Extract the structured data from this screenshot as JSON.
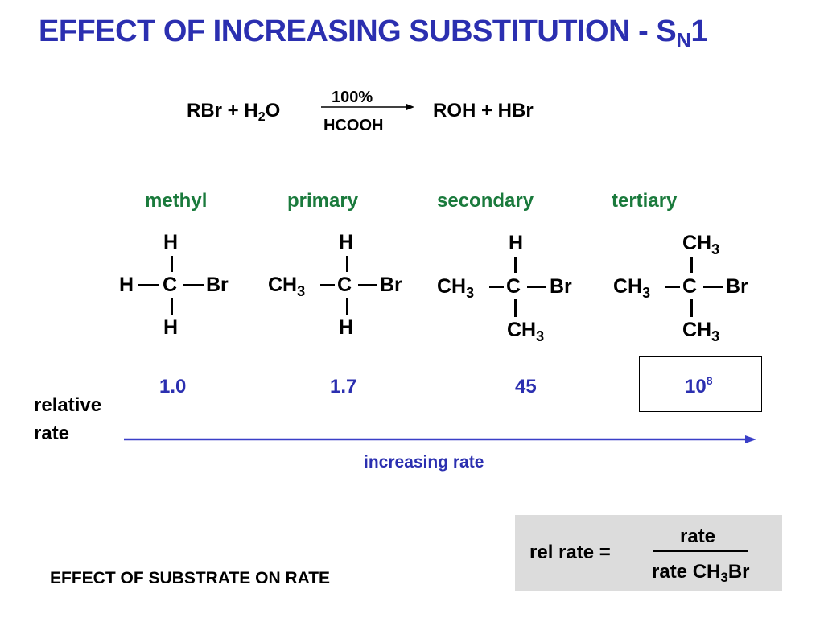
{
  "title": {
    "main": "EFFECT OF INCREASING SUBSTITUTION  -  S",
    "sub": "N",
    "tail": "1"
  },
  "reaction": {
    "rbr": "RBr  +  H",
    "water_sub": "2",
    "water_o": "O",
    "above_arrow": "100%",
    "below_arrow": "HCOOH",
    "products": "ROH    +    HBr"
  },
  "categories": [
    "methyl",
    "primary",
    "secondary",
    "tertiary"
  ],
  "atoms": {
    "H": "H",
    "C": "C",
    "Br": "Br",
    "CH": "CH",
    "three": "3"
  },
  "rates": {
    "methyl": "1.0",
    "primary": "1.7",
    "secondary": "45",
    "tertiary_base": "10",
    "tertiary_exp": "8"
  },
  "relative_rate_label": [
    "relative",
    "rate"
  ],
  "increasing_rate_label": "increasing rate",
  "footer": "EFFECT OF SUBSTRATE ON RATE",
  "formula": {
    "lhs": "rel rate  =",
    "numerator": "rate",
    "denominator_prefix": "rate CH",
    "denominator_sub": "3",
    "denominator_suffix": "Br"
  },
  "colors": {
    "title": "#2b2fb0",
    "category": "#1a7a3c",
    "rate": "#2b2fb0",
    "box": "#dcdcdc"
  }
}
